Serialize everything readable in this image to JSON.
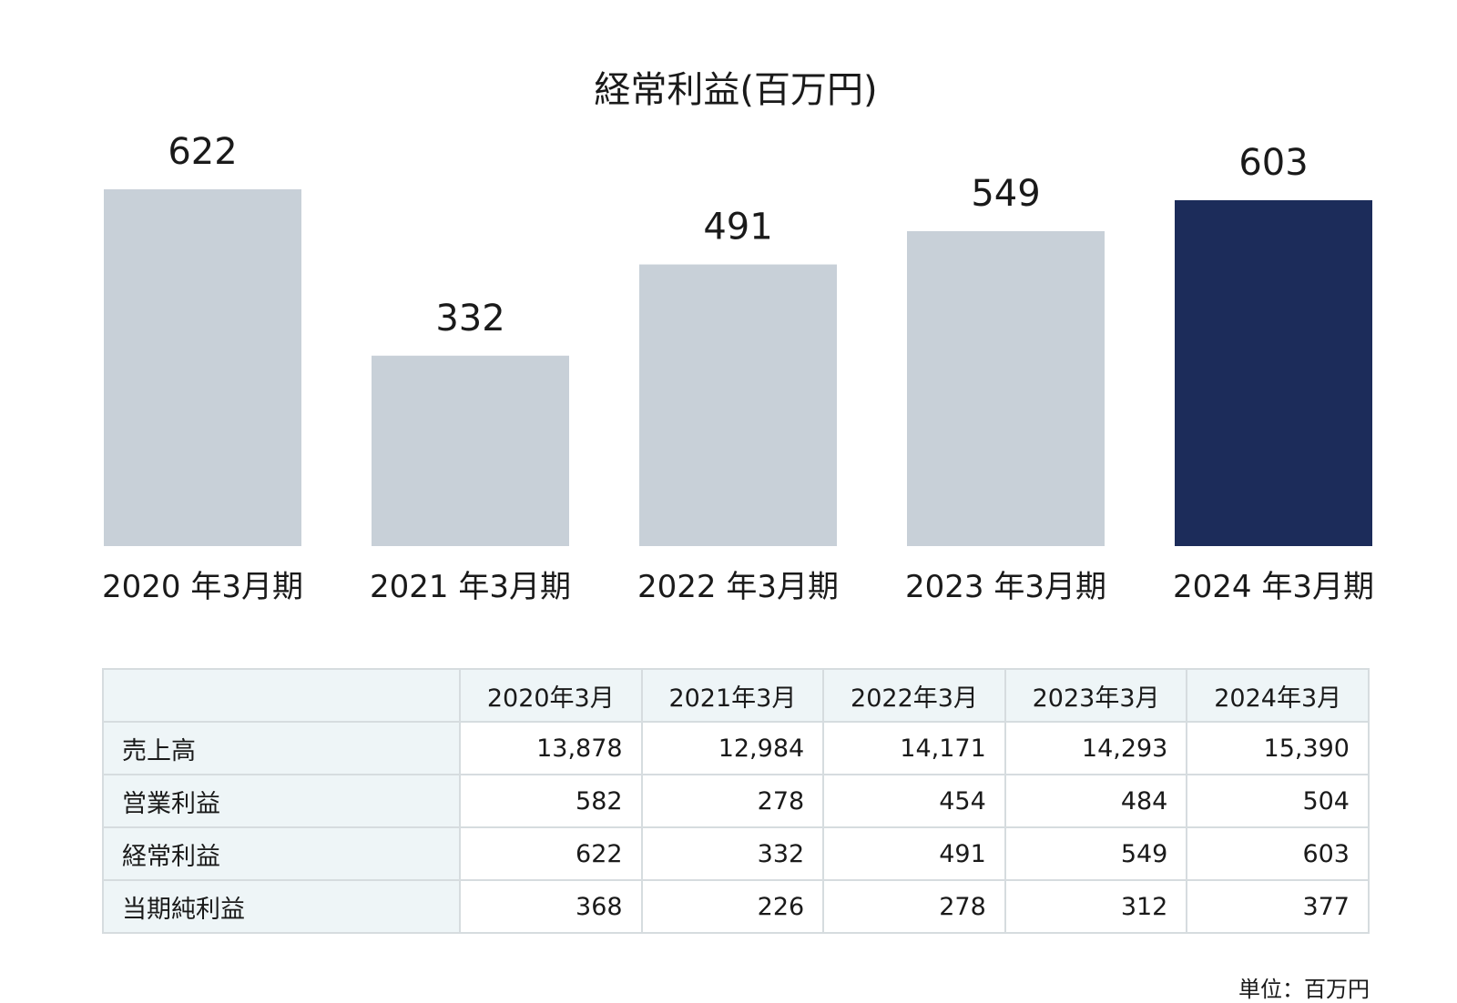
{
  "chart_data": {
    "type": "bar",
    "title": "経常利益(百万円)",
    "categories": [
      "2020 年3月期",
      "2021 年3月期",
      "2022 年3月期",
      "2023 年3月期",
      "2024 年3月期"
    ],
    "values": [
      622,
      332,
      491,
      549,
      603
    ],
    "highlight_index": 4,
    "colors": {
      "bar": "#c8d0d8",
      "highlight": "#1c2c5a"
    },
    "ylim": [
      0,
      622
    ],
    "grid": false,
    "legend": "none"
  },
  "table": {
    "headers": [
      "",
      "2020年3月",
      "2021年3月",
      "2022年3月",
      "2023年3月",
      "2024年3月"
    ],
    "rows": [
      {
        "label": "売上高",
        "values": [
          "13,878",
          "12,984",
          "14,171",
          "14,293",
          "15,390"
        ]
      },
      {
        "label": "営業利益",
        "values": [
          "582",
          "278",
          "454",
          "484",
          "504"
        ]
      },
      {
        "label": "経常利益",
        "values": [
          "622",
          "332",
          "491",
          "549",
          "603"
        ]
      },
      {
        "label": "当期純利益",
        "values": [
          "368",
          "226",
          "278",
          "312",
          "377"
        ]
      }
    ],
    "unit_note": "単位：百万円"
  }
}
